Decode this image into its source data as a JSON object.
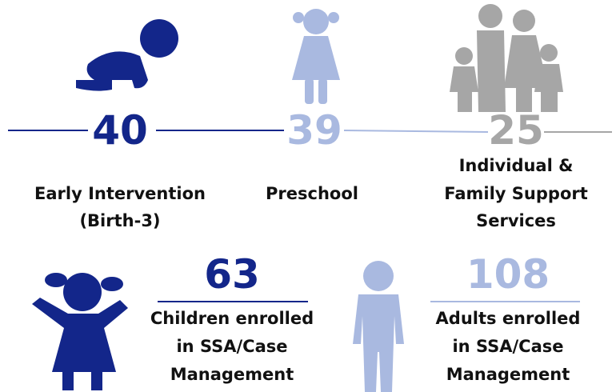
{
  "top_stats": [
    {
      "number": 40,
      "label_lines": [
        "Early Intervention",
        "(Birth-3)"
      ]
    },
    {
      "number": 39,
      "label_lines": [
        "Preschool"
      ]
    },
    {
      "number": 25,
      "label_lines": [
        "Individual &",
        "Family Support",
        "Services"
      ]
    }
  ],
  "bottom_stats": [
    {
      "number": 63,
      "label_lines": [
        "Children enrolled",
        "in SSA/Case",
        "Management"
      ]
    },
    {
      "number": 108,
      "label_lines": [
        "Adults enrolled",
        "in SSA/Case",
        "Management"
      ]
    }
  ]
}
